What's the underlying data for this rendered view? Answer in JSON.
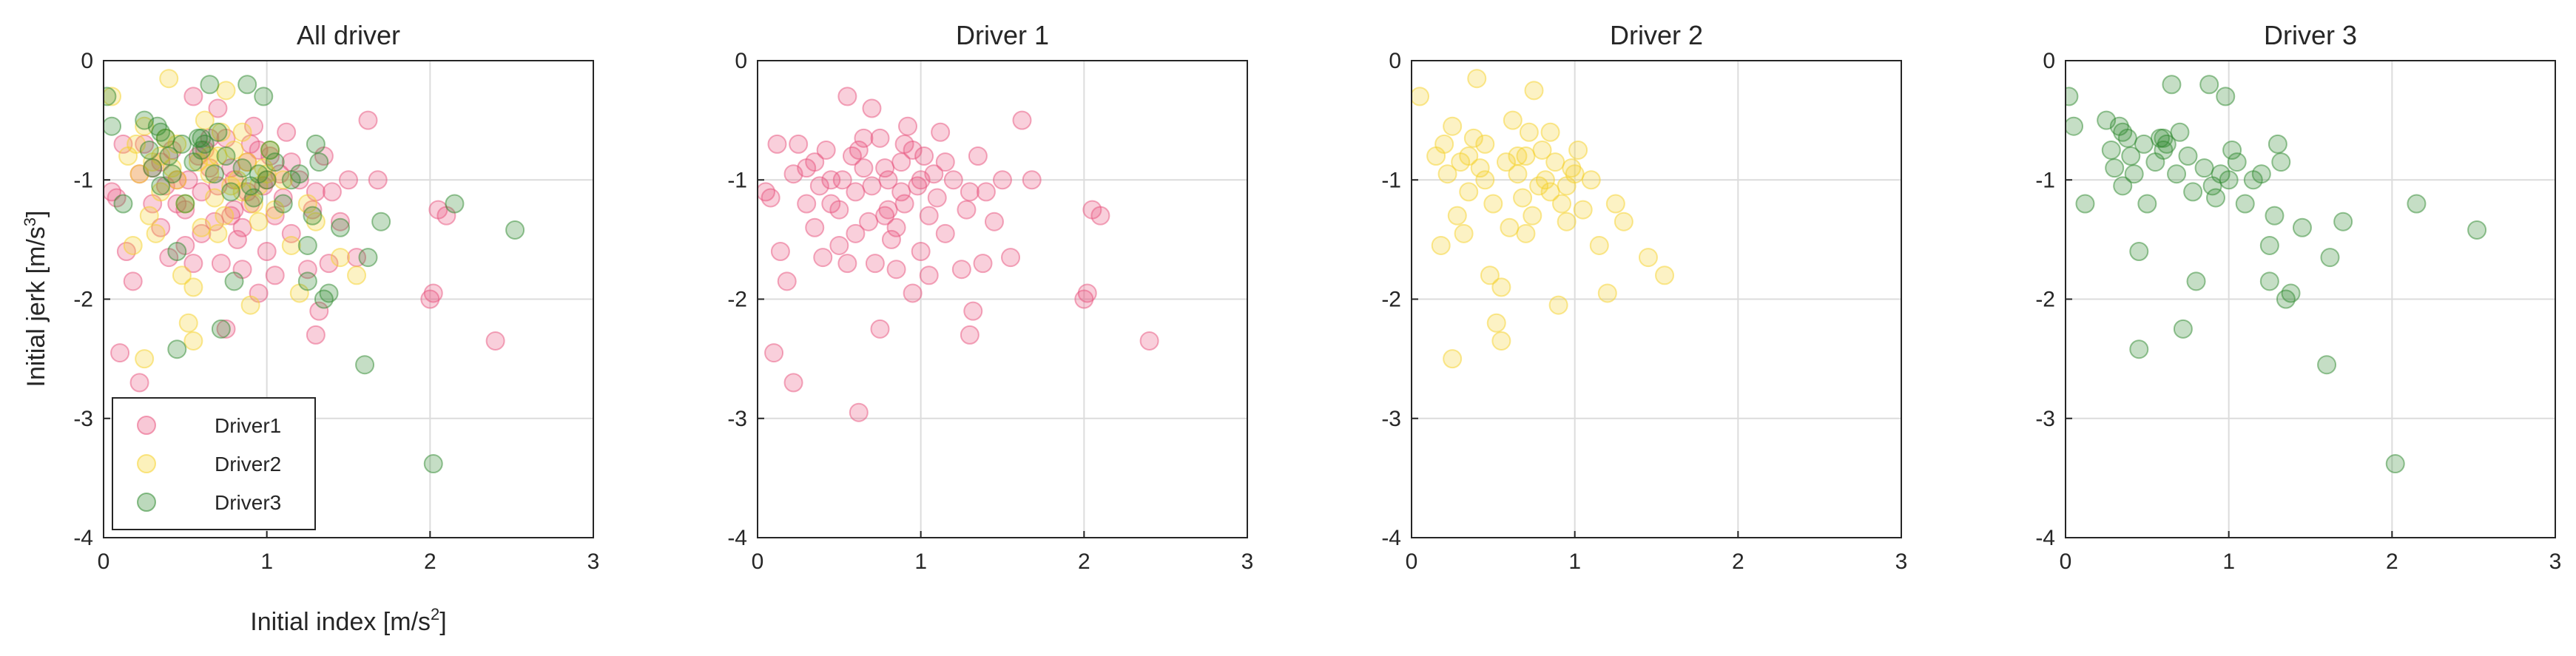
{
  "colors": {
    "Driver1": "#e8547e",
    "Driver2": "#f5d22a",
    "Driver3": "#2f8a2f",
    "grid": "#dcdcdc",
    "axis": "#262626"
  },
  "labels": {
    "xlabel": "Initial index [m/s",
    "xlabel_sup": "2",
    "xlabel_end": "]",
    "ylabel": "Initial jerk [m/s",
    "ylabel_sup": "3",
    "ylabel_end": "]"
  },
  "chart_data": [
    {
      "type": "scatter",
      "title": "All driver",
      "xlim": [
        0,
        3
      ],
      "ylim": [
        -4,
        0
      ],
      "xticks": [
        0,
        1,
        2,
        3
      ],
      "yticks": [
        0,
        -1,
        -2,
        -3,
        -4
      ],
      "grid": true,
      "legend": {
        "placement": "bottom-left",
        "entries": [
          "Driver1",
          "Driver2",
          "Driver3"
        ]
      },
      "series": [
        {
          "name": "Driver1",
          "ref": "d1"
        },
        {
          "name": "Driver2",
          "ref": "d2"
        },
        {
          "name": "Driver3",
          "ref": "d3"
        }
      ]
    },
    {
      "type": "scatter",
      "title": "Driver 1",
      "xlim": [
        0,
        3
      ],
      "ylim": [
        -4,
        0
      ],
      "xticks": [
        0,
        1,
        2,
        3
      ],
      "yticks": [
        0,
        -1,
        -2,
        -3,
        -4
      ],
      "grid": true,
      "series": [
        {
          "ref": "d1"
        }
      ]
    },
    {
      "type": "scatter",
      "title": "Driver 2",
      "xlim": [
        0,
        3
      ],
      "ylim": [
        -4,
        0
      ],
      "xticks": [
        0,
        1,
        2,
        3
      ],
      "yticks": [
        0,
        -1,
        -2,
        -3,
        -4
      ],
      "grid": true,
      "series": [
        {
          "ref": "d2"
        }
      ]
    },
    {
      "type": "scatter",
      "title": "Driver 3",
      "xlim": [
        0,
        3
      ],
      "ylim": [
        -4,
        0
      ],
      "xticks": [
        0,
        1,
        2,
        3
      ],
      "yticks": [
        0,
        -1,
        -2,
        -3,
        -4
      ],
      "grid": true,
      "series": [
        {
          "ref": "d3"
        }
      ]
    }
  ],
  "points": {
    "d1": [
      [
        0.05,
        -1.1
      ],
      [
        0.12,
        -0.7
      ],
      [
        0.22,
        -0.95
      ],
      [
        0.1,
        -2.45
      ],
      [
        0.14,
        -1.6
      ],
      [
        0.18,
        -1.85
      ],
      [
        0.22,
        -2.7
      ],
      [
        0.08,
        -1.15
      ],
      [
        0.3,
        -0.9
      ],
      [
        0.35,
        -1.4
      ],
      [
        0.38,
        -1.05
      ],
      [
        0.42,
        -0.75
      ],
      [
        0.45,
        -1.2
      ],
      [
        0.5,
        -1.55
      ],
      [
        0.52,
        -1.0
      ],
      [
        0.55,
        -0.3
      ],
      [
        0.58,
        -0.8
      ],
      [
        0.62,
        -0.75
      ],
      [
        0.6,
        -1.1
      ],
      [
        0.65,
        -0.9
      ],
      [
        0.68,
        -1.35
      ],
      [
        0.7,
        -0.4
      ],
      [
        0.72,
        -1.7
      ],
      [
        0.75,
        -0.65
      ],
      [
        0.78,
        -1.3
      ],
      [
        0.8,
        -1.0
      ],
      [
        0.82,
        -1.5
      ],
      [
        0.85,
        -1.75
      ],
      [
        0.88,
        -0.85
      ],
      [
        0.9,
        -1.2
      ],
      [
        0.92,
        -0.55
      ],
      [
        0.95,
        -1.95
      ],
      [
        0.98,
        -1.05
      ],
      [
        1.0,
        -1.6
      ],
      [
        1.02,
        -0.8
      ],
      [
        1.05,
        -1.3
      ],
      [
        1.08,
        -0.95
      ],
      [
        1.1,
        -1.15
      ],
      [
        1.12,
        -0.6
      ],
      [
        1.15,
        -1.45
      ],
      [
        1.2,
        -1.0
      ],
      [
        1.25,
        -1.75
      ],
      [
        1.28,
        -1.25
      ],
      [
        1.3,
        -2.3
      ],
      [
        1.32,
        -2.1
      ],
      [
        1.35,
        -0.8
      ],
      [
        1.38,
        -1.7
      ],
      [
        1.4,
        -1.1
      ],
      [
        1.45,
        -1.35
      ],
      [
        1.5,
        -1.0
      ],
      [
        1.55,
        -1.65
      ],
      [
        1.62,
        -0.5
      ],
      [
        1.68,
        -1.0
      ],
      [
        2.02,
        -1.95
      ],
      [
        2.05,
        -1.25
      ],
      [
        2.1,
        -1.3
      ],
      [
        2.4,
        -2.35
      ],
      [
        0.62,
        -2.95
      ],
      [
        0.75,
        -2.25
      ],
      [
        0.85,
        -1.4
      ],
      [
        0.9,
        -0.7
      ],
      [
        0.7,
        -1.05
      ],
      [
        0.45,
        -1.0
      ],
      [
        0.55,
        -1.7
      ],
      [
        0.8,
        -1.25
      ],
      [
        1.0,
        -1.0
      ],
      [
        0.3,
        -1.2
      ],
      [
        0.4,
        -1.65
      ],
      [
        1.15,
        -0.85
      ],
      [
        0.6,
        -1.45
      ],
      [
        0.95,
        -0.75
      ],
      [
        2.0,
        -2.0
      ],
      [
        0.88,
        -1.1
      ],
      [
        0.25,
        -0.7
      ],
      [
        0.65,
        -0.65
      ],
      [
        1.05,
        -1.8
      ],
      [
        0.78,
        -0.9
      ],
      [
        0.5,
        -1.25
      ],
      [
        1.3,
        -1.1
      ],
      [
        0.35,
        -0.85
      ]
    ],
    "d2": [
      [
        0.05,
        -0.3
      ],
      [
        0.15,
        -0.8
      ],
      [
        0.2,
        -0.7
      ],
      [
        0.22,
        -0.95
      ],
      [
        0.25,
        -0.55
      ],
      [
        0.28,
        -1.3
      ],
      [
        0.3,
        -0.85
      ],
      [
        0.32,
        -1.45
      ],
      [
        0.35,
        -0.8
      ],
      [
        0.38,
        -0.65
      ],
      [
        0.4,
        -0.15
      ],
      [
        0.42,
        -0.9
      ],
      [
        0.45,
        -1.0
      ],
      [
        0.48,
        -1.8
      ],
      [
        0.5,
        -1.2
      ],
      [
        0.52,
        -2.2
      ],
      [
        0.55,
        -2.35
      ],
      [
        0.58,
        -0.85
      ],
      [
        0.6,
        -1.4
      ],
      [
        0.62,
        -0.5
      ],
      [
        0.65,
        -0.95
      ],
      [
        0.68,
        -1.15
      ],
      [
        0.7,
        -0.8
      ],
      [
        0.72,
        -0.6
      ],
      [
        0.74,
        -1.3
      ],
      [
        0.75,
        -0.25
      ],
      [
        0.78,
        -1.05
      ],
      [
        0.8,
        -0.75
      ],
      [
        0.82,
        -1.0
      ],
      [
        0.85,
        -1.1
      ],
      [
        0.88,
        -0.85
      ],
      [
        0.9,
        -2.05
      ],
      [
        0.92,
        -1.2
      ],
      [
        0.95,
        -1.05
      ],
      [
        0.98,
        -0.9
      ],
      [
        1.0,
        -0.95
      ],
      [
        1.02,
        -0.75
      ],
      [
        1.05,
        -1.25
      ],
      [
        1.1,
        -1.0
      ],
      [
        1.15,
        -1.55
      ],
      [
        1.2,
        -1.95
      ],
      [
        1.25,
        -1.2
      ],
      [
        1.3,
        -1.35
      ],
      [
        1.45,
        -1.65
      ],
      [
        1.55,
        -1.8
      ],
      [
        0.18,
        -1.55
      ],
      [
        0.25,
        -2.5
      ],
      [
        0.55,
        -1.9
      ],
      [
        0.7,
        -1.45
      ],
      [
        0.95,
        -1.35
      ],
      [
        0.65,
        -0.8
      ],
      [
        0.45,
        -0.7
      ],
      [
        0.85,
        -0.6
      ],
      [
        0.35,
        -1.1
      ]
    ],
    "d3": [
      [
        0.02,
        -0.3
      ],
      [
        0.05,
        -0.55
      ],
      [
        0.12,
        -1.2
      ],
      [
        0.25,
        -0.5
      ],
      [
        0.28,
        -0.75
      ],
      [
        0.3,
        -0.9
      ],
      [
        0.33,
        -0.55
      ],
      [
        0.35,
        -1.05
      ],
      [
        0.38,
        -0.65
      ],
      [
        0.4,
        -0.8
      ],
      [
        0.42,
        -0.95
      ],
      [
        0.45,
        -1.6
      ],
      [
        0.48,
        -0.7
      ],
      [
        0.5,
        -1.2
      ],
      [
        0.55,
        -0.85
      ],
      [
        0.58,
        -0.65
      ],
      [
        0.6,
        -0.75
      ],
      [
        0.62,
        -0.7
      ],
      [
        0.65,
        -0.2
      ],
      [
        0.68,
        -0.95
      ],
      [
        0.7,
        -0.6
      ],
      [
        0.72,
        -2.25
      ],
      [
        0.75,
        -0.8
      ],
      [
        0.78,
        -1.1
      ],
      [
        0.8,
        -1.85
      ],
      [
        0.85,
        -0.9
      ],
      [
        0.88,
        -0.2
      ],
      [
        0.9,
        -1.05
      ],
      [
        0.92,
        -1.15
      ],
      [
        0.95,
        -0.95
      ],
      [
        0.98,
        -0.3
      ],
      [
        1.0,
        -1.0
      ],
      [
        1.02,
        -0.75
      ],
      [
        1.05,
        -0.85
      ],
      [
        1.1,
        -1.2
      ],
      [
        1.15,
        -1.0
      ],
      [
        1.2,
        -0.95
      ],
      [
        1.25,
        -1.55
      ],
      [
        1.28,
        -1.3
      ],
      [
        1.3,
        -0.7
      ],
      [
        1.32,
        -0.85
      ],
      [
        1.35,
        -2.0
      ],
      [
        1.38,
        -1.95
      ],
      [
        1.45,
        -1.4
      ],
      [
        1.6,
        -2.55
      ],
      [
        1.62,
        -1.65
      ],
      [
        1.7,
        -1.35
      ],
      [
        2.02,
        -3.38
      ],
      [
        2.15,
        -1.2
      ],
      [
        2.52,
        -1.42
      ],
      [
        0.45,
        -2.42
      ],
      [
        1.25,
        -1.85
      ],
      [
        0.6,
        -0.65
      ],
      [
        0.35,
        -0.6
      ]
    ]
  }
}
